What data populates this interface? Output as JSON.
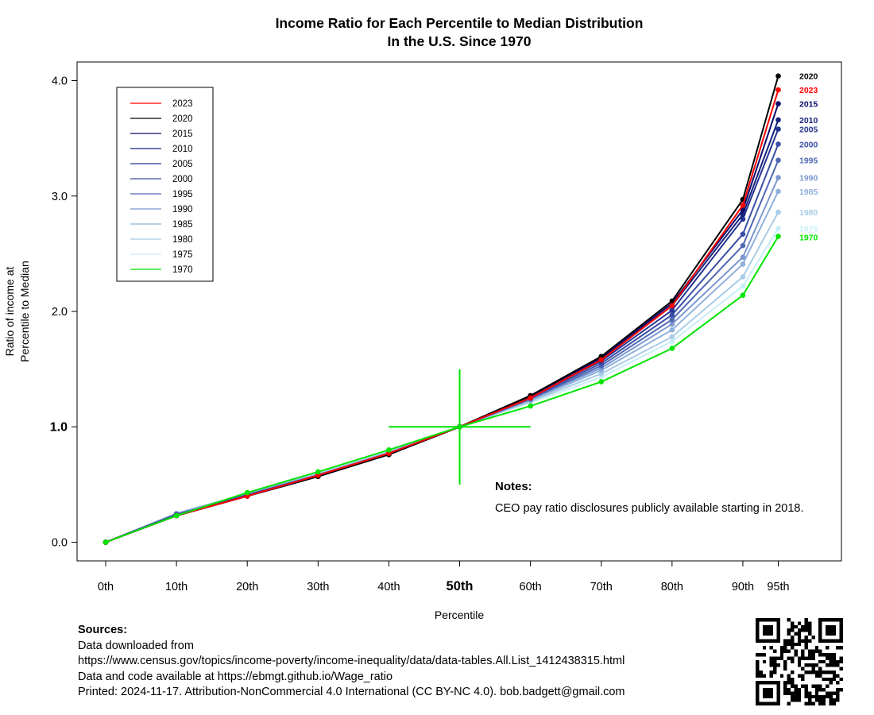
{
  "chart_data": {
    "type": "line",
    "title": [
      "Income Ratio for Each Percentile to Median Distribution",
      "In the U.S. Since 1970"
    ],
    "xlabel": "Percentile",
    "ylabel": [
      "Ratio of income at",
      "Percentile to Median"
    ],
    "x_positions": [
      0,
      10,
      20,
      30,
      40,
      50,
      60,
      70,
      80,
      90,
      95
    ],
    "x_tick_labels": [
      "0th",
      "10th",
      "20th",
      "30th",
      "40th",
      "50th",
      "60th",
      "70th",
      "80th",
      "90th",
      "95th"
    ],
    "y_ticks": [
      "0.0",
      "1.0",
      "2.0",
      "3.0",
      "4.0"
    ],
    "ylim": [
      0,
      4
    ],
    "legend_position": "top-left",
    "grid": false,
    "series": [
      {
        "name": "2023",
        "color": "#ff0000",
        "values": [
          0,
          0.23,
          0.4,
          0.58,
          0.77,
          1.0,
          1.25,
          1.58,
          2.05,
          2.92,
          3.92
        ]
      },
      {
        "name": "2020",
        "color": "#000000",
        "values": [
          0,
          0.23,
          0.4,
          0.57,
          0.76,
          1.0,
          1.27,
          1.61,
          2.09,
          2.97,
          4.04
        ]
      },
      {
        "name": "2015",
        "color": "#0b0b6b",
        "values": [
          0,
          0.23,
          0.4,
          0.57,
          0.76,
          1.0,
          1.27,
          1.6,
          2.07,
          2.88,
          3.8
        ]
      },
      {
        "name": "2010",
        "color": "#16237e",
        "values": [
          0,
          0.23,
          0.4,
          0.57,
          0.76,
          1.0,
          1.26,
          1.59,
          2.05,
          2.84,
          3.66
        ]
      },
      {
        "name": "2005",
        "color": "#263591",
        "values": [
          0,
          0.23,
          0.4,
          0.57,
          0.76,
          1.0,
          1.26,
          1.57,
          2.01,
          2.8,
          3.58
        ]
      },
      {
        "name": "2000",
        "color": "#3a4ea5",
        "values": [
          0,
          0.24,
          0.41,
          0.58,
          0.77,
          1.0,
          1.25,
          1.55,
          1.97,
          2.67,
          3.45
        ]
      },
      {
        "name": "1995",
        "color": "#5068b4",
        "values": [
          0,
          0.24,
          0.41,
          0.58,
          0.77,
          1.0,
          1.24,
          1.53,
          1.93,
          2.57,
          3.31
        ]
      },
      {
        "name": "1990",
        "color": "#7b97cf",
        "values": [
          0,
          0.24,
          0.41,
          0.58,
          0.77,
          1.0,
          1.24,
          1.51,
          1.89,
          2.47,
          3.16
        ]
      },
      {
        "name": "1985",
        "color": "#8fb0dc",
        "values": [
          0,
          0.25,
          0.42,
          0.59,
          0.78,
          1.0,
          1.23,
          1.49,
          1.84,
          2.41,
          3.04
        ]
      },
      {
        "name": "1980",
        "color": "#a9cce6",
        "values": [
          0,
          0.25,
          0.42,
          0.59,
          0.78,
          1.0,
          1.22,
          1.46,
          1.78,
          2.3,
          2.86
        ]
      },
      {
        "name": "1975",
        "color": "#c9eef8",
        "values": [
          0,
          0.24,
          0.42,
          0.6,
          0.79,
          1.0,
          1.21,
          1.43,
          1.74,
          2.22,
          2.72
        ]
      },
      {
        "name": "1970",
        "color": "#00e400",
        "values": [
          0,
          0.23,
          0.43,
          0.61,
          0.8,
          1.0,
          1.18,
          1.39,
          1.68,
          2.14,
          2.65
        ]
      }
    ],
    "reference_lines": {
      "x": 50,
      "y": 1.0,
      "x_range": [
        40,
        60
      ],
      "y_range": [
        0.5,
        1.5
      ],
      "color": "#00e400"
    },
    "notes": {
      "heading": "Notes:",
      "text": "CEO pay ratio disclosures publicly available starting in 2018."
    }
  },
  "sources": {
    "heading": "Sources:",
    "lines": [
      "Data downloaded from",
      "https://www.census.gov/topics/income-poverty/income-inequality/data/data-tables.All.List_1412438315.html",
      "Data and code available at https://ebmgt.github.io/Wage_ratio",
      "Printed: 2024-11-17. Attribution-NonCommercial 4.0 International (CC BY-NC 4.0). bob.badgett@gmail.com"
    ]
  }
}
